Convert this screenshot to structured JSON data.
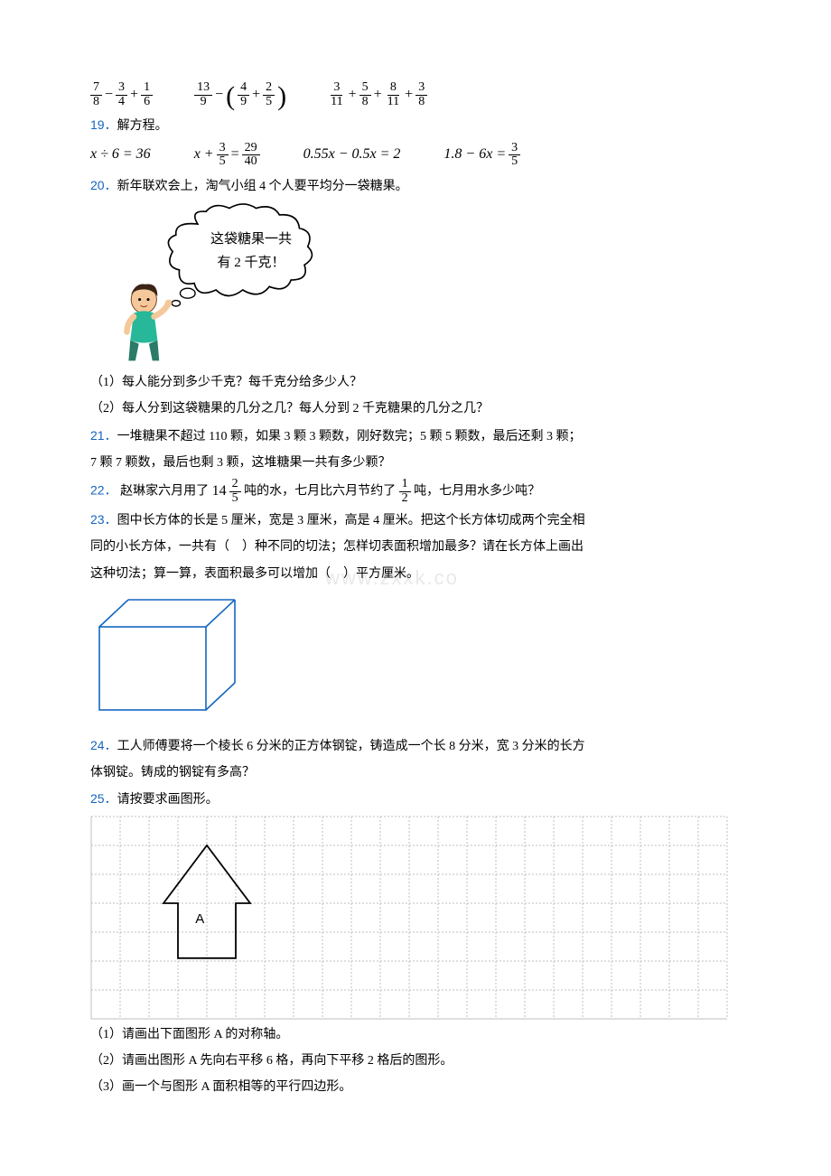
{
  "expr_row1": {
    "e1": {
      "a_n": "7",
      "a_d": "8",
      "b_n": "3",
      "b_d": "4",
      "c_n": "1",
      "c_d": "6"
    },
    "e2": {
      "a_n": "13",
      "a_d": "9",
      "b_n": "4",
      "b_d": "9",
      "c_n": "2",
      "c_d": "5"
    },
    "e3": {
      "a_n": "3",
      "a_d": "11",
      "b_n": "5",
      "b_d": "8",
      "c_n": "8",
      "c_d": "11",
      "d_n": "3",
      "d_d": "8"
    }
  },
  "q19": {
    "num": "19．",
    "text": "解方程。"
  },
  "eq_row": {
    "e1": "x ÷ 6 = 36",
    "e2_lhs": "x +",
    "e2_a_n": "3",
    "e2_a_d": "5",
    "e2_eq": "=",
    "e2_b_n": "29",
    "e2_b_d": "40",
    "e3": "0.55x − 0.5x = 2",
    "e4_lhs": "1.8 − 6x =",
    "e4_n": "3",
    "e4_d": "5"
  },
  "q20": {
    "num": "20．",
    "text": "新年联欢会上，淘气小组 4 个人要平均分一袋糖果。"
  },
  "bubble": {
    "l1": "这袋糖果一共",
    "l2": "有 2 千克！"
  },
  "q20_1": "（1）每人能分到多少千克？每千克分给多少人？",
  "q20_2": "（2）每人分到这袋糖果的几分之几？每人分到 2 千克糖果的几分之几？",
  "q21": {
    "num": "21．",
    "text": "一堆糖果不超过 110 颗，如果 3 颗 3 颗数，刚好数完；5 颗 5 颗数，最后还剩 3 颗；"
  },
  "q21b": "7 颗 7 颗数，最后也剩 3 颗，这堆糖果一共有多少颗？",
  "q22": {
    "num": "22．",
    "pre": "赵琳家六月用了",
    "int": "14",
    "fn": "2",
    "fd": "5",
    "mid": "吨的水，七月比六月节约了",
    "gn": "1",
    "gd": "2",
    "suf": "吨，七月用水多少吨？"
  },
  "q23": {
    "num": "23．",
    "text": "图中长方体的长是 5 厘米，宽是 3 厘米，高是 4 厘米。把这个长方体切成两个完全相"
  },
  "q23b": "同的小长方体，一共有（　）种不同的切法；怎样切表面积增加最多？请在长方体上画出",
  "q23c": "这种切法；算一算，表面积最多可以增加（　）平方厘米。",
  "q24": {
    "num": "24．",
    "text": "工人师傅要将一个棱长 6 分米的正方体钢锭，铸造成一个长 8 分米，宽 3 分米的长方"
  },
  "q24b": "体钢锭。铸成的钢锭有多高？",
  "q25": {
    "num": "25．",
    "text": "请按要求画图形。"
  },
  "shapeA_label": "A",
  "q25_1": "（1）请画出下面图形 A 的对称轴。",
  "q25_2": "（2）请画出图形 A 先向右平移 6 格，再向下平移 2 格后的图形。",
  "q25_3": "（3）画一个与图形 A 面积相等的平行四边形。",
  "colors": {
    "qnum": "#1565c0",
    "grid_line": "#bfbfbf",
    "grid_border": "#bfbfbf",
    "shape_stroke": "#000000"
  },
  "grid": {
    "cols": 22,
    "rows": 7,
    "cell": 32,
    "shapeA": {
      "type": "arrow-house",
      "points_cells": [
        [
          3,
          4.9
        ],
        [
          3,
          3
        ],
        [
          2.5,
          3
        ],
        [
          4,
          1
        ],
        [
          5.5,
          3
        ],
        [
          5,
          3
        ],
        [
          5,
          4.9
        ]
      ],
      "label_cell": [
        3.6,
        3.5
      ]
    }
  },
  "cuboid": {
    "w": 140,
    "h": 110,
    "depth": 34,
    "stroke": "#1565c0",
    "stroke_w": 1.5
  }
}
